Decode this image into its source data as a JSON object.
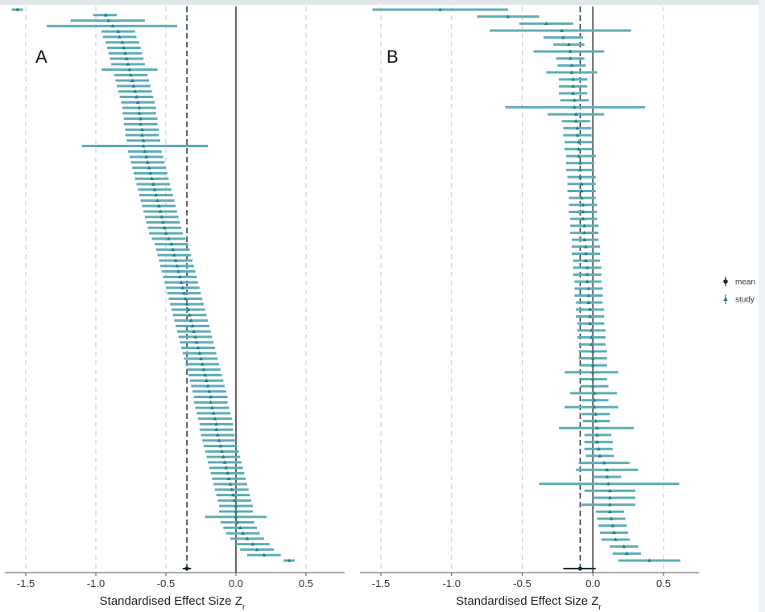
{
  "colors": {
    "study": "#1f7f8c",
    "ci": "#5fadb7",
    "mean": "#1a2e34",
    "grid": "#c9c9c9",
    "zero_line": "#333333"
  },
  "legend": {
    "items": [
      {
        "key": "mean",
        "label": "mean",
        "marker": "circle"
      },
      {
        "key": "study",
        "label": "study",
        "marker": "triangle"
      }
    ],
    "placement": "right"
  },
  "chart_data": [
    {
      "type": "scatter",
      "subtype": "forest",
      "panel_label": "A",
      "xlabel_main": "Standardised Effect Size Z",
      "xlabel_sub": "r",
      "xlim": [
        -1.58,
        0.5
      ],
      "xticks": [
        -1.5,
        -1.0,
        -0.5,
        0.0,
        0.5
      ],
      "xtick_labels": [
        "-1.5",
        "-1.0",
        "-0.5",
        "0.0",
        "0.5"
      ],
      "grid": "vertical dashed at ticks",
      "reference_line": 0.0,
      "study_order": "top to bottom",
      "studies": [
        [
          -1.56,
          -1.6,
          -1.52
        ],
        [
          -0.93,
          -1.02,
          -0.85
        ],
        [
          -0.91,
          -1.18,
          -0.65
        ],
        [
          -0.88,
          -1.35,
          -0.42
        ],
        [
          -0.84,
          -0.96,
          -0.72
        ],
        [
          -0.83,
          -0.95,
          -0.71
        ],
        [
          -0.81,
          -0.93,
          -0.69
        ],
        [
          -0.8,
          -0.92,
          -0.68
        ],
        [
          -0.79,
          -0.91,
          -0.67
        ],
        [
          -0.78,
          -0.9,
          -0.66
        ],
        [
          -0.77,
          -0.89,
          -0.65
        ],
        [
          -0.76,
          -0.96,
          -0.56
        ],
        [
          -0.75,
          -0.87,
          -0.63
        ],
        [
          -0.74,
          -0.86,
          -0.62
        ],
        [
          -0.73,
          -0.85,
          -0.61
        ],
        [
          -0.72,
          -0.84,
          -0.6
        ],
        [
          -0.71,
          -0.83,
          -0.59
        ],
        [
          -0.7,
          -0.82,
          -0.58
        ],
        [
          -0.69,
          -0.81,
          -0.57
        ],
        [
          -0.69,
          -0.81,
          -0.57
        ],
        [
          -0.68,
          -0.8,
          -0.56
        ],
        [
          -0.68,
          -0.8,
          -0.56
        ],
        [
          -0.67,
          -0.79,
          -0.55
        ],
        [
          -0.67,
          -0.79,
          -0.55
        ],
        [
          -0.66,
          -0.78,
          -0.54
        ],
        [
          -0.66,
          -1.1,
          -0.2
        ],
        [
          -0.65,
          -0.77,
          -0.53
        ],
        [
          -0.64,
          -0.76,
          -0.52
        ],
        [
          -0.63,
          -0.75,
          -0.51
        ],
        [
          -0.62,
          -0.74,
          -0.5
        ],
        [
          -0.61,
          -0.73,
          -0.49
        ],
        [
          -0.6,
          -0.72,
          -0.48
        ],
        [
          -0.59,
          -0.71,
          -0.47
        ],
        [
          -0.58,
          -0.7,
          -0.46
        ],
        [
          -0.57,
          -0.69,
          -0.45
        ],
        [
          -0.56,
          -0.68,
          -0.44
        ],
        [
          -0.55,
          -0.67,
          -0.43
        ],
        [
          -0.54,
          -0.66,
          -0.42
        ],
        [
          -0.53,
          -0.65,
          -0.41
        ],
        [
          -0.52,
          -0.64,
          -0.4
        ],
        [
          -0.51,
          -0.63,
          -0.39
        ],
        [
          -0.5,
          -0.62,
          -0.38
        ],
        [
          -0.48,
          -0.6,
          -0.36
        ],
        [
          -0.46,
          -0.58,
          -0.34
        ],
        [
          -0.45,
          -0.57,
          -0.33
        ],
        [
          -0.44,
          -0.56,
          -0.32
        ],
        [
          -0.43,
          -0.55,
          -0.31
        ],
        [
          -0.42,
          -0.54,
          -0.3
        ],
        [
          -0.41,
          -0.53,
          -0.29
        ],
        [
          -0.4,
          -0.52,
          -0.28
        ],
        [
          -0.39,
          -0.51,
          -0.27
        ],
        [
          -0.38,
          -0.5,
          -0.26
        ],
        [
          -0.37,
          -0.49,
          -0.25
        ],
        [
          -0.36,
          -0.48,
          -0.24
        ],
        [
          -0.35,
          -0.47,
          -0.23
        ],
        [
          -0.34,
          -0.46,
          -0.22
        ],
        [
          -0.33,
          -0.45,
          -0.21
        ],
        [
          -0.32,
          -0.44,
          -0.2
        ],
        [
          -0.31,
          -0.43,
          -0.19
        ],
        [
          -0.3,
          -0.42,
          -0.18
        ],
        [
          -0.29,
          -0.41,
          -0.17
        ],
        [
          -0.28,
          -0.4,
          -0.16
        ],
        [
          -0.27,
          -0.39,
          -0.15
        ],
        [
          -0.26,
          -0.38,
          -0.14
        ],
        [
          -0.25,
          -0.37,
          -0.13
        ],
        [
          -0.24,
          -0.36,
          -0.12
        ],
        [
          -0.23,
          -0.35,
          -0.11
        ],
        [
          -0.22,
          -0.34,
          -0.1
        ],
        [
          -0.21,
          -0.33,
          -0.09
        ],
        [
          -0.2,
          -0.32,
          -0.08
        ],
        [
          -0.19,
          -0.31,
          -0.07
        ],
        [
          -0.18,
          -0.3,
          -0.06
        ],
        [
          -0.18,
          -0.3,
          -0.06
        ],
        [
          -0.17,
          -0.29,
          -0.05
        ],
        [
          -0.16,
          -0.28,
          -0.04
        ],
        [
          -0.15,
          -0.27,
          -0.03
        ],
        [
          -0.14,
          -0.26,
          -0.02
        ],
        [
          -0.14,
          -0.26,
          -0.02
        ],
        [
          -0.13,
          -0.25,
          -0.01
        ],
        [
          -0.12,
          -0.24,
          0.0
        ],
        [
          -0.11,
          -0.23,
          0.01
        ],
        [
          -0.1,
          -0.22,
          0.02
        ],
        [
          -0.09,
          -0.21,
          0.03
        ],
        [
          -0.08,
          -0.2,
          0.04
        ],
        [
          -0.07,
          -0.19,
          0.05
        ],
        [
          -0.06,
          -0.18,
          0.06
        ],
        [
          -0.05,
          -0.17,
          0.07
        ],
        [
          -0.04,
          -0.16,
          0.08
        ],
        [
          -0.03,
          -0.15,
          0.09
        ],
        [
          -0.02,
          -0.14,
          0.1
        ],
        [
          -0.01,
          -0.13,
          0.11
        ],
        [
          0.0,
          -0.12,
          0.12
        ],
        [
          0.0,
          -0.12,
          0.12
        ],
        [
          0.0,
          -0.22,
          0.22
        ],
        [
          0.01,
          -0.11,
          0.13
        ],
        [
          0.03,
          -0.09,
          0.15
        ],
        [
          0.05,
          -0.07,
          0.17
        ],
        [
          0.08,
          -0.04,
          0.2
        ],
        [
          0.12,
          0.0,
          0.24
        ],
        [
          0.15,
          0.03,
          0.27
        ],
        [
          0.2,
          0.08,
          0.32
        ],
        [
          0.38,
          0.34,
          0.42
        ]
      ],
      "pooled_mean": {
        "estimate": -0.35,
        "ci": [
          -0.38,
          -0.32
        ]
      }
    },
    {
      "type": "scatter",
      "subtype": "forest",
      "panel_label": "B",
      "xlabel_main": "Standardised Effect Size Z",
      "xlabel_sub": "r",
      "xlim": [
        -1.58,
        0.5
      ],
      "xticks": [
        -1.5,
        -1.0,
        -0.5,
        0.0,
        0.5
      ],
      "xtick_labels": [
        "-1.5",
        "-1.0",
        "-0.5",
        "0.0",
        "0.5"
      ],
      "grid": "vertical dashed at ticks",
      "reference_line": 0.0,
      "study_order": "top to bottom",
      "studies": [
        [
          -1.08,
          -1.56,
          -0.6
        ],
        [
          -0.6,
          -0.82,
          -0.38
        ],
        [
          -0.33,
          -0.52,
          -0.14
        ],
        [
          -0.22,
          -0.73,
          0.27
        ],
        [
          -0.21,
          -0.35,
          -0.07
        ],
        [
          -0.17,
          -0.28,
          -0.06
        ],
        [
          -0.16,
          -0.42,
          0.08
        ],
        [
          -0.16,
          -0.26,
          -0.06
        ],
        [
          -0.15,
          -0.25,
          -0.05
        ],
        [
          -0.15,
          -0.33,
          0.03
        ],
        [
          -0.14,
          -0.24,
          -0.04
        ],
        [
          -0.14,
          -0.24,
          -0.04
        ],
        [
          -0.14,
          -0.24,
          -0.04
        ],
        [
          -0.13,
          -0.23,
          -0.03
        ],
        [
          -0.13,
          -0.62,
          0.37
        ],
        [
          -0.12,
          -0.32,
          0.08
        ],
        [
          -0.12,
          -0.22,
          -0.02
        ],
        [
          -0.11,
          -0.21,
          -0.01
        ],
        [
          -0.11,
          -0.21,
          -0.01
        ],
        [
          -0.1,
          -0.2,
          0.0
        ],
        [
          -0.1,
          -0.2,
          0.0
        ],
        [
          -0.1,
          -0.19,
          0.02
        ],
        [
          -0.09,
          -0.19,
          0.01
        ],
        [
          -0.09,
          -0.19,
          0.01
        ],
        [
          -0.09,
          -0.18,
          0.02
        ],
        [
          -0.08,
          -0.18,
          0.02
        ],
        [
          -0.08,
          -0.18,
          0.02
        ],
        [
          -0.08,
          -0.17,
          0.02
        ],
        [
          -0.07,
          -0.17,
          0.03
        ],
        [
          -0.07,
          -0.17,
          0.03
        ],
        [
          -0.07,
          -0.16,
          0.03
        ],
        [
          -0.06,
          -0.16,
          0.04
        ],
        [
          -0.06,
          -0.16,
          0.04
        ],
        [
          -0.06,
          -0.15,
          0.04
        ],
        [
          -0.05,
          -0.15,
          0.05
        ],
        [
          -0.05,
          -0.15,
          0.05
        ],
        [
          -0.05,
          -0.14,
          0.05
        ],
        [
          -0.04,
          -0.14,
          0.06
        ],
        [
          -0.04,
          -0.14,
          0.06
        ],
        [
          -0.04,
          -0.13,
          0.06
        ],
        [
          -0.03,
          -0.13,
          0.07
        ],
        [
          -0.03,
          -0.13,
          0.07
        ],
        [
          -0.03,
          -0.12,
          0.07
        ],
        [
          -0.02,
          -0.12,
          0.08
        ],
        [
          -0.02,
          -0.12,
          0.08
        ],
        [
          -0.02,
          -0.11,
          0.08
        ],
        [
          -0.01,
          -0.11,
          0.09
        ],
        [
          -0.01,
          -0.11,
          0.09
        ],
        [
          -0.01,
          -0.1,
          0.09
        ],
        [
          0.0,
          -0.1,
          0.1
        ],
        [
          0.0,
          -0.1,
          0.1
        ],
        [
          0.0,
          -0.09,
          0.1
        ],
        [
          0.0,
          -0.2,
          0.18
        ],
        [
          0.0,
          -0.09,
          0.1
        ],
        [
          0.0,
          -0.09,
          0.11
        ],
        [
          0.01,
          -0.16,
          0.17
        ],
        [
          0.01,
          -0.08,
          0.11
        ],
        [
          0.01,
          -0.2,
          0.18
        ],
        [
          0.02,
          -0.08,
          0.12
        ],
        [
          0.02,
          -0.07,
          0.12
        ],
        [
          0.03,
          -0.24,
          0.29
        ],
        [
          0.03,
          -0.06,
          0.13
        ],
        [
          0.03,
          -0.06,
          0.14
        ],
        [
          0.04,
          -0.06,
          0.14
        ],
        [
          0.05,
          -0.05,
          0.15
        ],
        [
          0.08,
          -0.1,
          0.26
        ],
        [
          0.1,
          -0.12,
          0.32
        ],
        [
          0.1,
          0.0,
          0.2
        ],
        [
          0.11,
          -0.38,
          0.61
        ],
        [
          0.12,
          -0.06,
          0.3
        ],
        [
          0.12,
          0.0,
          0.3
        ],
        [
          0.12,
          -0.08,
          0.3
        ],
        [
          0.12,
          0.02,
          0.22
        ],
        [
          0.13,
          0.03,
          0.23
        ],
        [
          0.14,
          0.04,
          0.24
        ],
        [
          0.15,
          0.05,
          0.25
        ],
        [
          0.16,
          0.06,
          0.26
        ],
        [
          0.22,
          0.12,
          0.32
        ],
        [
          0.24,
          0.14,
          0.34
        ],
        [
          0.4,
          0.18,
          0.62
        ]
      ],
      "pooled_mean": {
        "estimate": -0.09,
        "ci": [
          -0.21,
          0.02
        ]
      }
    }
  ]
}
